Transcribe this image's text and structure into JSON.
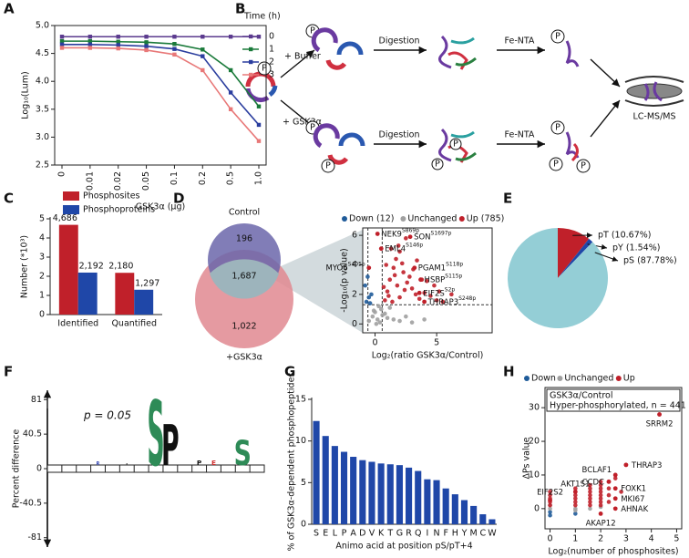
{
  "panel_labels": [
    "A",
    "B",
    "C",
    "D",
    "E",
    "F",
    "G",
    "H"
  ],
  "diagram": {
    "buffer": "+ Buffer",
    "gsk": "+ GSK3α",
    "digestion": "Digestion",
    "fento": "Fe-NTA",
    "ms": "LC-MS/MS",
    "phospho": "P"
  },
  "venn": {
    "control": "Control",
    "treated": "+GSK3α",
    "only_control": "196",
    "shared": "1,687",
    "only_treated": "1,022"
  },
  "chart_data": [
    {
      "type": "line",
      "ylabel": "Log₁₀(Lum)",
      "xlabel": "GSK3α (μg)",
      "legend_title": "Time (h)",
      "categories": [
        "0",
        "0.01",
        "0.02",
        "0.05",
        "0.1",
        "0.2",
        "0.5",
        "1.0"
      ],
      "ylim": [
        2.5,
        5.0
      ],
      "yticks": [
        2.5,
        {
          "value": 3,
          "label": "3.0"
        },
        3.5,
        {
          "value": 4,
          "label": "4.0"
        },
        4.5,
        {
          "value": 5,
          "label": "5.0"
        }
      ],
      "series": [
        {
          "name": "0",
          "color": "#5b3a8e",
          "values": [
            4.8,
            4.8,
            4.8,
            4.8,
            4.8,
            4.8,
            4.8,
            4.8
          ]
        },
        {
          "name": "1",
          "color": "#1a7a3a",
          "values": [
            4.72,
            4.72,
            4.71,
            4.7,
            4.67,
            4.57,
            4.2,
            3.55
          ]
        },
        {
          "name": "2",
          "color": "#2a3d9e",
          "values": [
            4.66,
            4.66,
            4.65,
            4.63,
            4.58,
            4.45,
            3.8,
            3.22
          ]
        },
        {
          "name": "3",
          "color": "#e87878",
          "values": [
            4.6,
            4.6,
            4.59,
            4.56,
            4.48,
            4.2,
            3.5,
            2.93
          ]
        }
      ]
    },
    {
      "type": "bar",
      "ylabel": "Number (*10³)",
      "categories": [
        "Identified",
        "Quantified"
      ],
      "ylim": [
        0,
        5
      ],
      "yticks": [
        0,
        1,
        2,
        3,
        4,
        5
      ],
      "series": [
        {
          "name": "Phosphosites",
          "color": "#c0202a",
          "values": [
            4.686,
            2.18
          ],
          "value_labels": [
            "4,686",
            "2,180"
          ]
        },
        {
          "name": "Phosphoproteins",
          "color": "#1f47a8",
          "values": [
            2.192,
            1.297
          ],
          "value_labels": [
            "2,192",
            "1,297"
          ]
        }
      ]
    },
    {
      "type": "scatter",
      "ylabel": "-Log₁₀(p value)",
      "xlabel": "Log₂(ratio GSK3α/Control)",
      "xlim": [
        -1,
        9.5
      ],
      "ylim": [
        -0.6,
        6.5
      ],
      "xticks": [
        0,
        5
      ],
      "yticks": [
        0,
        2,
        4,
        6
      ],
      "threshold_lines": {
        "x": [
          -0.58,
          0.58
        ],
        "y": 1.3
      },
      "series": [
        {
          "name": "Down (12)",
          "color": "#1f5b99",
          "x": [
            -0.7,
            -0.5,
            -0.3,
            -0.6,
            -0.4,
            -0.8
          ],
          "y": [
            1.5,
            1.8,
            2.0,
            3.2,
            1.4,
            2.6
          ]
        },
        {
          "name": "Unchanged",
          "color": "#a0a0a0",
          "x": [
            -0.5,
            -0.2,
            0,
            0.2,
            0.4,
            0.5,
            0.6,
            1.0,
            1.5,
            2.0,
            2.5,
            3.0,
            0.3,
            -0.1,
            0.1,
            0.8,
            1.2,
            4.0
          ],
          "y": [
            0.2,
            0.5,
            0.8,
            0.3,
            0.1,
            1.0,
            0.6,
            0.4,
            0.3,
            0.2,
            0.5,
            0.1,
            1.2,
            0.9,
            0,
            0.7,
            1.1,
            0.3
          ]
        },
        {
          "name": "Up (785)",
          "color": "#c0202a",
          "x": [
            0.8,
            1.0,
            1.2,
            1.5,
            1.7,
            2.0,
            2.3,
            2.6,
            3.0,
            3.3,
            3.6,
            4.0,
            4.5,
            5.0,
            5.5,
            6.2,
            0.9,
            1.3,
            1.8,
            2.2,
            2.8,
            3.4,
            4.2,
            1.1,
            1.6,
            2.5,
            3.1,
            0.7,
            1.4,
            2.0,
            5.2,
            4.8,
            2.4,
            1.9,
            3.8
          ],
          "y": [
            1.6,
            2.2,
            3.0,
            3.8,
            4.4,
            4.9,
            3.5,
            2.8,
            2.4,
            2.0,
            1.7,
            2.1,
            1.9,
            1.6,
            1.5,
            2.0,
            4.0,
            5.1,
            2.6,
            4.1,
            3.2,
            4.3,
            2.9,
            1.9,
            3.3,
            5.8,
            3.7,
            2.5,
            1.5,
            1.8,
            2.2,
            2.6,
            2.3,
            5.3,
            3.0
          ]
        }
      ],
      "annotations": [
        {
          "label": "NEK9",
          "site": "S869p",
          "x": 0.2,
          "y": 6.1
        },
        {
          "label": "SON",
          "site": "S1697p",
          "x": 2.85,
          "y": 5.9
        },
        {
          "label": "EML4",
          "site": "S146p",
          "x": 0.5,
          "y": 5.1
        },
        {
          "label": "PGAM1",
          "site": "S118p",
          "x": 3.2,
          "y": 3.8
        },
        {
          "label": "HSBP",
          "site": "S115p",
          "x": 3.7,
          "y": 3.0
        },
        {
          "label": "EIF2S",
          "site": "S2p",
          "x": 3.6,
          "y": 2.1
        },
        {
          "label": "THRAP3",
          "site": "S248p",
          "x": 4.0,
          "y": 1.5
        },
        {
          "label": "MYO6",
          "site": "S405p",
          "x": -0.5,
          "y": 3.8
        }
      ]
    },
    {
      "type": "pie",
      "values": [
        10.67,
        1.54,
        87.78
      ],
      "value_labels": [
        "pT (10.67%)",
        "pY (1.54%)",
        "pS (87.78%)"
      ],
      "colors": [
        "#c0202a",
        "#1f47a8",
        "#94ced6"
      ]
    },
    {
      "type": "logo",
      "ylabel": "Percent difference",
      "annotation": "p = 0.05",
      "ylim": [
        -92,
        92
      ],
      "yticks": [
        81,
        40.5,
        0,
        -40.5,
        -81
      ],
      "letters": [
        null,
        null,
        null,
        "R",
        null,
        "P",
        null,
        "S",
        "P",
        null,
        "P",
        "E",
        null,
        "S",
        null
      ],
      "heights": [
        null,
        null,
        null,
        8,
        null,
        6,
        null,
        80,
        52,
        null,
        10,
        10,
        null,
        33,
        null
      ],
      "letter_colors": {
        "S": "#2e8b57",
        "P": "#111111",
        "R": "#2a3db0",
        "E": "#d03030"
      }
    },
    {
      "type": "bar",
      "ylabel": "% of GSK3α-dependent phosphopeptides",
      "xlabel": "Animo acid at position pS/pT+4",
      "color": "#1f47a8",
      "ylim": [
        0,
        15
      ],
      "yticks": [
        0,
        5,
        10,
        15
      ],
      "categories": [
        "S",
        "E",
        "L",
        "P",
        "A",
        "D",
        "V",
        "K",
        "T",
        "G",
        "R",
        "Q",
        "I",
        "N",
        "F",
        "H",
        "Y",
        "M",
        "C",
        "W"
      ],
      "values": [
        12.4,
        10.6,
        9.4,
        8.7,
        8.1,
        7.7,
        7.5,
        7.3,
        7.2,
        7.1,
        6.8,
        6.4,
        5.4,
        5.3,
        4.3,
        3.6,
        2.9,
        2.2,
        1.2,
        0.6
      ]
    },
    {
      "type": "scatter",
      "ylabel": "ΔPs value",
      "xlabel": "Log₂(number of phosphosites)",
      "xlim": [
        -0.2,
        5.2
      ],
      "ylim": [
        -6,
        36
      ],
      "xticks": [
        0,
        1,
        2,
        3,
        4,
        5
      ],
      "yticks": [
        0,
        10,
        20,
        30
      ],
      "box": [
        "GSK3α/Control",
        "Hyper-phosphorylated, n = 441"
      ],
      "series": [
        {
          "name": "Down",
          "color": "#1f5b99",
          "x": [
            0,
            0,
            1
          ],
          "y": [
            -2,
            -1,
            -1.5
          ]
        },
        {
          "name": "Unchanged",
          "color": "#a0a0a0",
          "x": [
            0,
            0,
            1,
            1,
            1.58,
            2
          ],
          "y": [
            0,
            1,
            0,
            -0.5,
            0,
            0.5
          ]
        },
        {
          "name": "Up",
          "color": "#c0202a",
          "x": [
            0,
            0,
            0,
            0,
            0,
            1,
            1,
            1,
            1,
            1,
            1,
            1.58,
            1.58,
            1.58,
            1.58,
            1.58,
            1.58,
            1.58,
            2,
            2,
            2,
            2,
            2,
            2,
            2,
            2,
            2.32,
            2.32,
            2.32,
            2.32,
            2.58,
            2.58,
            2.58,
            2.58,
            2.81,
            3,
            4.32
          ],
          "y": [
            1,
            2,
            3,
            4,
            5,
            1,
            2,
            3,
            4,
            5,
            6,
            1,
            2,
            3,
            4,
            5,
            6,
            7,
            1,
            2,
            3,
            4,
            5,
            6,
            7,
            8,
            2,
            4,
            6,
            8,
            3,
            6,
            9,
            10,
            5,
            13,
            28
          ]
        }
      ],
      "annotations": [
        {
          "label": "SRRM2",
          "x": 4.32,
          "y": 28
        },
        {
          "label": "THRAP3",
          "x": 3,
          "y": 13
        },
        {
          "label": "BCLAF1",
          "x": 2.58,
          "y": 10
        },
        {
          "label": "CCDC",
          "x": 2.32,
          "y": 8
        },
        {
          "label": "FOXK1",
          "x": 2.58,
          "y": 6
        },
        {
          "label": "MKI67",
          "x": 2.58,
          "y": 3
        },
        {
          "label": "AHNAK",
          "x": 2.58,
          "y": 0
        },
        {
          "label": "AKAP12",
          "x": 2,
          "y": -1.5
        },
        {
          "label": "AKT1S1",
          "x": 1,
          "y": 5
        },
        {
          "label": "EIF2S2",
          "x": 0,
          "y": 2.5
        }
      ]
    }
  ]
}
